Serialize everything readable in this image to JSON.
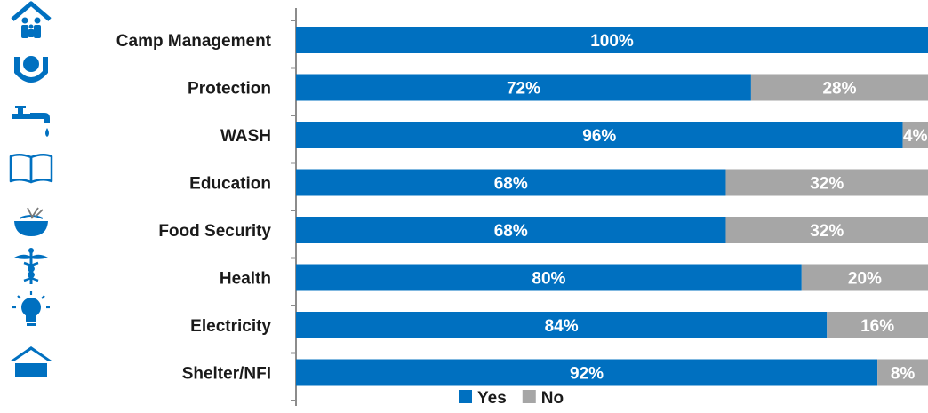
{
  "chart_data": {
    "type": "bar",
    "orientation": "horizontal",
    "stacked": true,
    "percent": true,
    "categories": [
      "Camp Management",
      "Protection",
      "WASH",
      "Education",
      "Food Security",
      "Health",
      "Electricity",
      "Shelter/NFI"
    ],
    "series": [
      {
        "name": "Yes",
        "color": "#0070C0",
        "values": [
          100,
          72,
          96,
          68,
          68,
          80,
          84,
          92
        ]
      },
      {
        "name": "No",
        "color": "#A6A6A6",
        "values": [
          0,
          28,
          4,
          32,
          32,
          20,
          16,
          8
        ]
      }
    ],
    "xlim": [
      0,
      100
    ],
    "legend_position": "bottom",
    "grid": false,
    "data_labels": true
  },
  "icons": [
    {
      "name": "camp-management-icon",
      "color": "#0070C0"
    },
    {
      "name": "protection-icon",
      "color": "#0070C0"
    },
    {
      "name": "wash-tap-icon",
      "color": "#0070C0"
    },
    {
      "name": "education-book-icon",
      "color": "#0070C0"
    },
    {
      "name": "food-bowl-icon",
      "color": "#0070C0"
    },
    {
      "name": "health-caduceus-icon",
      "color": "#0070C0"
    },
    {
      "name": "electricity-bulb-icon",
      "color": "#0070C0"
    },
    {
      "name": "shelter-icon",
      "color": "#0070C0"
    }
  ]
}
